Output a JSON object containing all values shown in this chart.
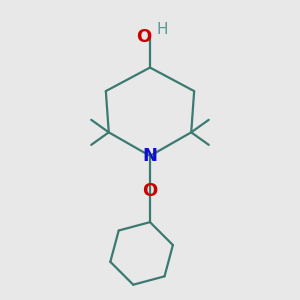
{
  "bg_color": "#e8e8e8",
  "bond_color": "#3a7a70",
  "N_color": "#1010cc",
  "O_color": "#cc0000",
  "H_color": "#5a9898",
  "line_width": 1.6,
  "fig_size": [
    3.0,
    3.0
  ],
  "dpi": 100,
  "xlim": [
    0,
    10
  ],
  "ylim": [
    0,
    10
  ]
}
